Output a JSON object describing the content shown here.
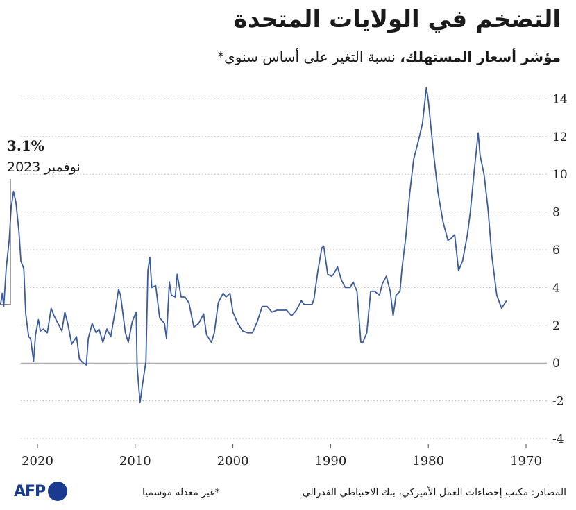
{
  "header": {
    "title": "التضخم في الولايات المتحدة",
    "subtitle_bold": "مؤشر أسعار المستهلك،",
    "subtitle_rest": " نسبة التغير على أساس سنوي*"
  },
  "annotation": {
    "value": "3.1%",
    "date": "نوفمبر 2023"
  },
  "footer": {
    "source": "المصادر: مكتب إحصاءات العمل الأميركي، بنك الاحتياطي الفدرالي",
    "note": "*غير معدلة موسميا",
    "logo": "AFP"
  },
  "colors": {
    "line": "#3b5b9b",
    "grid": "#bbbbbb",
    "zero": "#999999",
    "logo": "#1a3a8f"
  },
  "chart_data": {
    "type": "line",
    "x_direction": "reversed",
    "xlim": [
      1972,
      2023.9
    ],
    "ylim": [
      -4,
      15
    ],
    "x_ticks": [
      {
        "value": 2020,
        "label": "2020"
      },
      {
        "value": 2010,
        "label": "2010"
      },
      {
        "value": 2000,
        "label": "2000"
      },
      {
        "value": 1990,
        "label": "1990"
      },
      {
        "value": 1980,
        "label": "1980"
      },
      {
        "value": 1970,
        "label": "1970"
      }
    ],
    "y_ticks": [
      {
        "value": 14,
        "label": "14"
      },
      {
        "value": 12,
        "label": "12"
      },
      {
        "value": 10,
        "label": "10"
      },
      {
        "value": 8,
        "label": "8"
      },
      {
        "value": 6,
        "label": "6"
      },
      {
        "value": 4,
        "label": "4"
      },
      {
        "value": 2,
        "label": "2"
      },
      {
        "value": 0,
        "label": "0"
      },
      {
        "value": -2,
        "label": "-2"
      },
      {
        "value": -4,
        "label": "-4"
      }
    ],
    "grid": "horizontal-dotted",
    "series": [
      {
        "points": [
          [
            1972.0,
            3.3
          ],
          [
            1972.5,
            2.9
          ],
          [
            1973.0,
            3.6
          ],
          [
            1973.5,
            5.7
          ],
          [
            1973.9,
            8.2
          ],
          [
            1974.3,
            10.0
          ],
          [
            1974.7,
            11.0
          ],
          [
            1974.9,
            12.2
          ],
          [
            1975.3,
            10.2
          ],
          [
            1975.7,
            8.0
          ],
          [
            1976.0,
            6.8
          ],
          [
            1976.5,
            5.4
          ],
          [
            1976.9,
            4.9
          ],
          [
            1977.3,
            6.8
          ],
          [
            1977.7,
            6.6
          ],
          [
            1978.0,
            6.5
          ],
          [
            1978.5,
            7.5
          ],
          [
            1979.0,
            9.0
          ],
          [
            1979.5,
            11.3
          ],
          [
            1980.0,
            13.9
          ],
          [
            1980.2,
            14.6
          ],
          [
            1980.6,
            12.7
          ],
          [
            1981.0,
            11.8
          ],
          [
            1981.5,
            10.8
          ],
          [
            1981.9,
            9.0
          ],
          [
            1982.3,
            6.7
          ],
          [
            1982.7,
            5.0
          ],
          [
            1982.9,
            3.8
          ],
          [
            1983.3,
            3.6
          ],
          [
            1983.6,
            2.5
          ],
          [
            1983.9,
            3.8
          ],
          [
            1984.3,
            4.6
          ],
          [
            1984.7,
            4.2
          ],
          [
            1985.0,
            3.6
          ],
          [
            1985.5,
            3.8
          ],
          [
            1985.9,
            3.8
          ],
          [
            1986.3,
            1.6
          ],
          [
            1986.7,
            1.1
          ],
          [
            1986.9,
            1.1
          ],
          [
            1987.3,
            3.8
          ],
          [
            1987.7,
            4.3
          ],
          [
            1988.0,
            4.0
          ],
          [
            1988.5,
            4.0
          ],
          [
            1988.9,
            4.4
          ],
          [
            1989.3,
            5.1
          ],
          [
            1989.7,
            4.7
          ],
          [
            1989.9,
            4.6
          ],
          [
            1990.3,
            4.7
          ],
          [
            1990.7,
            6.2
          ],
          [
            1990.9,
            6.1
          ],
          [
            1991.3,
            4.9
          ],
          [
            1991.7,
            3.4
          ],
          [
            1991.9,
            3.1
          ],
          [
            1992.3,
            3.1
          ],
          [
            1992.7,
            3.1
          ],
          [
            1993.0,
            3.3
          ],
          [
            1993.5,
            2.8
          ],
          [
            1994.0,
            2.5
          ],
          [
            1994.5,
            2.8
          ],
          [
            1995.0,
            2.8
          ],
          [
            1995.5,
            2.8
          ],
          [
            1996.0,
            2.7
          ],
          [
            1996.5,
            3.0
          ],
          [
            1997.0,
            3.0
          ],
          [
            1997.5,
            2.2
          ],
          [
            1998.0,
            1.6
          ],
          [
            1998.5,
            1.6
          ],
          [
            1999.0,
            1.7
          ],
          [
            1999.5,
            2.1
          ],
          [
            2000.0,
            2.7
          ],
          [
            2000.3,
            3.7
          ],
          [
            2000.7,
            3.5
          ],
          [
            2001.0,
            3.7
          ],
          [
            2001.5,
            3.2
          ],
          [
            2001.9,
            1.6
          ],
          [
            2002.2,
            1.1
          ],
          [
            2002.7,
            1.5
          ],
          [
            2003.0,
            2.6
          ],
          [
            2003.5,
            2.1
          ],
          [
            2004.0,
            1.9
          ],
          [
            2004.5,
            3.2
          ],
          [
            2004.9,
            3.5
          ],
          [
            2005.3,
            3.5
          ],
          [
            2005.7,
            4.7
          ],
          [
            2005.9,
            3.5
          ],
          [
            2006.3,
            3.6
          ],
          [
            2006.5,
            4.3
          ],
          [
            2006.8,
            1.3
          ],
          [
            2007.0,
            2.1
          ],
          [
            2007.5,
            2.4
          ],
          [
            2007.9,
            4.1
          ],
          [
            2008.3,
            4.0
          ],
          [
            2008.5,
            5.6
          ],
          [
            2008.7,
            4.9
          ],
          [
            2008.9,
            0.1
          ],
          [
            2009.3,
            -1.3
          ],
          [
            2009.5,
            -2.1
          ],
          [
            2009.8,
            -0.2
          ],
          [
            2009.9,
            2.7
          ],
          [
            2010.3,
            2.2
          ],
          [
            2010.7,
            1.1
          ],
          [
            2011.0,
            1.6
          ],
          [
            2011.5,
            3.6
          ],
          [
            2011.7,
            3.9
          ],
          [
            2012.0,
            2.9
          ],
          [
            2012.5,
            1.4
          ],
          [
            2012.9,
            1.8
          ],
          [
            2013.3,
            1.1
          ],
          [
            2013.7,
            1.8
          ],
          [
            2014.0,
            1.6
          ],
          [
            2014.4,
            2.1
          ],
          [
            2014.8,
            1.3
          ],
          [
            2015.0,
            -0.1
          ],
          [
            2015.3,
            0.0
          ],
          [
            2015.7,
            0.2
          ],
          [
            2016.0,
            1.4
          ],
          [
            2016.5,
            1.0
          ],
          [
            2016.9,
            2.1
          ],
          [
            2017.2,
            2.7
          ],
          [
            2017.5,
            1.7
          ],
          [
            2017.9,
            2.1
          ],
          [
            2018.3,
            2.5
          ],
          [
            2018.6,
            2.9
          ],
          [
            2018.9,
            1.9
          ],
          [
            2019.0,
            1.6
          ],
          [
            2019.4,
            1.8
          ],
          [
            2019.7,
            1.7
          ],
          [
            2019.9,
            2.3
          ],
          [
            2020.2,
            1.5
          ],
          [
            2020.4,
            0.1
          ],
          [
            2020.7,
            1.3
          ],
          [
            2020.9,
            1.4
          ],
          [
            2021.2,
            2.6
          ],
          [
            2021.4,
            5.0
          ],
          [
            2021.7,
            5.4
          ],
          [
            2021.9,
            7.0
          ],
          [
            2022.2,
            8.5
          ],
          [
            2022.45,
            9.1
          ],
          [
            2022.7,
            8.2
          ],
          [
            2022.9,
            6.5
          ],
          [
            2023.2,
            5.0
          ],
          [
            2023.45,
            3.0
          ],
          [
            2023.6,
            3.7
          ],
          [
            2023.75,
            3.2
          ],
          [
            2023.9,
            3.1
          ]
        ]
      }
    ]
  }
}
